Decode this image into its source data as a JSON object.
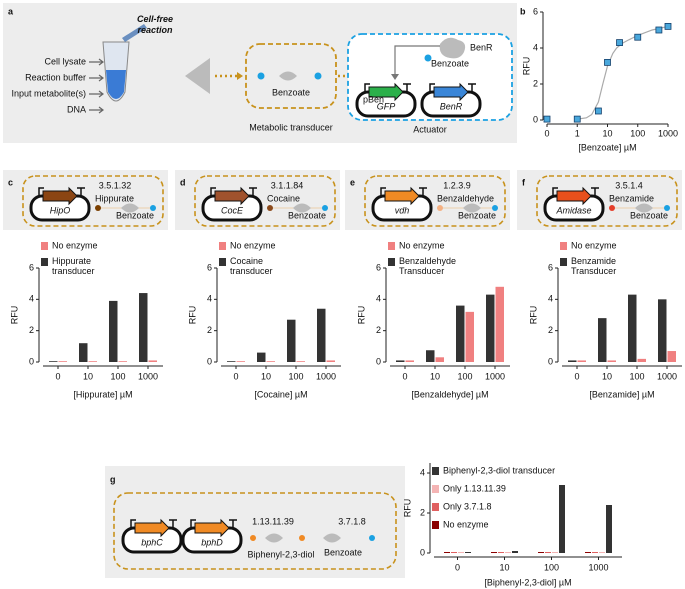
{
  "figure": {
    "panel_labels": [
      "a",
      "b",
      "c",
      "d",
      "e",
      "f",
      "g"
    ]
  },
  "diagrams": {
    "a": {
      "cell_free": "Cell-free reaction",
      "inputs": [
        "Cell lysate",
        "Reaction buffer",
        "Input metabolite(s)",
        "DNA"
      ],
      "transducer_product": "Benzoate",
      "transducer_label": "Metabolic transducer",
      "regulator": "BenR",
      "ligand": "Benzoate",
      "promoter": "pBen",
      "reporter": "GFP",
      "regulator_gene": "BenR",
      "actuator_label": "Actuator"
    },
    "enzymes": [
      {
        "gene": "HipO",
        "ec": "3.5.1.32",
        "substrate": "Hippurate",
        "product": "Benzoate"
      },
      {
        "gene": "CocE",
        "ec": "3.1.1.84",
        "substrate": "Cocaine",
        "product": "Benzoate"
      },
      {
        "gene": "vdh",
        "ec": "1.2.3.9",
        "substrate": "Benzaldehyde",
        "product": "Benzoate"
      },
      {
        "gene": "Amidase",
        "ec": "3.5.1.4",
        "substrate": "Benzamide",
        "product": "Benzoate"
      }
    ],
    "g": {
      "genes": [
        "bphC",
        "bphD"
      ],
      "ec": [
        "1.13.11.39",
        "3.7.1.8"
      ],
      "substrate": "Biphenyl-2,3-diol",
      "product": "Benzoate"
    }
  },
  "chart_data": [
    {
      "type": "scatter",
      "x_label": "[Benzoate] µM",
      "y_label": "RFU",
      "x_scale": "log",
      "x": [
        0,
        1,
        5,
        10,
        25,
        100,
        500,
        1000
      ],
      "values": [
        0.05,
        0.05,
        0.5,
        3.2,
        4.3,
        4.6,
        5.0,
        5.2
      ],
      "color": "#4aa8dc",
      "fit": {
        "x": [
          1,
          2,
          3,
          5,
          7,
          10,
          15,
          20,
          30,
          50,
          100,
          300,
          1000
        ],
        "values": [
          0.05,
          0.12,
          0.3,
          1.0,
          2.0,
          3.0,
          3.7,
          4.0,
          4.25,
          4.45,
          4.7,
          5.0,
          5.2
        ],
        "color": "#aaaaaa"
      },
      "xlim": [
        0,
        1000
      ],
      "xticks": [
        0,
        1,
        10,
        100,
        1000
      ],
      "ylim": [
        0,
        6
      ],
      "yticks": [
        0,
        2,
        4,
        6
      ]
    },
    {
      "type": "bar",
      "x_label": "[Hippurate] µM",
      "y_label": "RFU",
      "categories": [
        "0",
        "10",
        "100",
        "1000"
      ],
      "series": [
        {
          "name": "No enzyme",
          "color": "#f08080",
          "values": [
            0.05,
            0.05,
            0.05,
            0.1
          ]
        },
        {
          "name": "Hippurate transducer",
          "color": "#333333",
          "values": [
            0.05,
            1.2,
            3.9,
            4.4
          ]
        }
      ],
      "ylim": [
        0,
        6
      ],
      "yticks": [
        0,
        2,
        4,
        6
      ]
    },
    {
      "type": "bar",
      "x_label": "[Cocaine] µM",
      "y_label": "RFU",
      "categories": [
        "0",
        "10",
        "100",
        "1000"
      ],
      "series": [
        {
          "name": "No enzyme",
          "color": "#f08080",
          "values": [
            0.05,
            0.05,
            0.05,
            0.1
          ]
        },
        {
          "name": "Cocaine transducer",
          "color": "#333333",
          "values": [
            0.05,
            0.6,
            2.7,
            3.4
          ]
        }
      ],
      "ylim": [
        0,
        6
      ],
      "yticks": [
        0,
        2,
        4,
        6
      ]
    },
    {
      "type": "bar",
      "x_label": "[Benzaldehyde] µM",
      "y_label": "RFU",
      "categories": [
        "0",
        "10",
        "100",
        "1000"
      ],
      "series": [
        {
          "name": "No enzyme",
          "color": "#f08080",
          "values": [
            0.1,
            0.3,
            3.2,
            4.8
          ]
        },
        {
          "name": "Benzaldehyde Transducer",
          "color": "#333333",
          "values": [
            0.1,
            0.75,
            3.6,
            4.3
          ]
        }
      ],
      "ylim": [
        0,
        6
      ],
      "yticks": [
        0,
        2,
        4,
        6
      ]
    },
    {
      "type": "bar",
      "x_label": "[Benzamide] µM",
      "y_label": "RFU",
      "categories": [
        "0",
        "10",
        "100",
        "1000"
      ],
      "series": [
        {
          "name": "No enzyme",
          "color": "#f08080",
          "values": [
            0.1,
            0.1,
            0.2,
            0.7
          ]
        },
        {
          "name": "Benzamide Transducer",
          "color": "#333333",
          "values": [
            0.1,
            2.8,
            4.3,
            4.0
          ]
        }
      ],
      "ylim": [
        0,
        6
      ],
      "yticks": [
        0,
        2,
        4,
        6
      ]
    },
    {
      "type": "bar",
      "x_label": "[Biphenyl-2,3-diol] µM",
      "y_label": "RFU",
      "categories": [
        "0",
        "10",
        "100",
        "1000"
      ],
      "series": [
        {
          "name": "Biphenyl-2,3-diol transducer",
          "color": "#333333",
          "values": [
            0.05,
            0.1,
            3.4,
            2.4
          ]
        },
        {
          "name": "Only 1.13.11.39",
          "color": "#f4b4b4",
          "values": [
            0.05,
            0.05,
            0.05,
            0.05
          ]
        },
        {
          "name": "Only 3.7.1.8",
          "color": "#e06060",
          "values": [
            0.05,
            0.05,
            0.05,
            0.05
          ]
        },
        {
          "name": "No enzyme",
          "color": "#8b0000",
          "values": [
            0.05,
            0.05,
            0.05,
            0.05
          ]
        }
      ],
      "ylim": [
        0,
        4.5
      ],
      "yticks": [
        0,
        2,
        4
      ]
    }
  ]
}
